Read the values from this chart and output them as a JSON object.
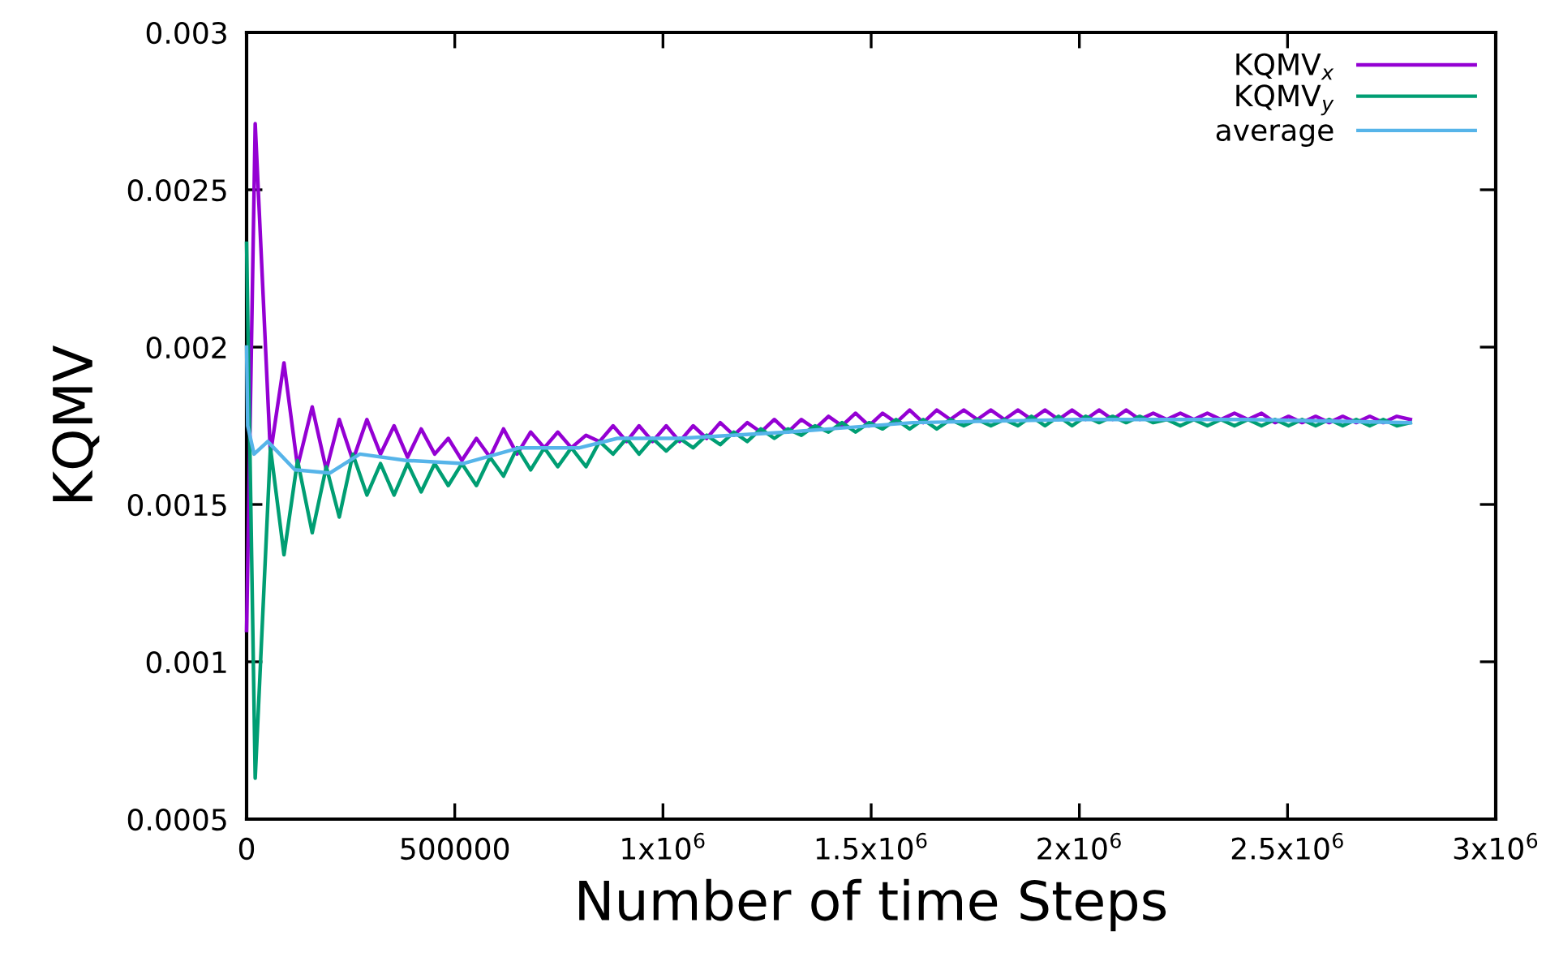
{
  "chart_data": {
    "type": "line",
    "xlabel": "Number of time Steps",
    "ylabel": "KQMV",
    "xlim": [
      0,
      3000000
    ],
    "ylim": [
      0.0005,
      0.003
    ],
    "xticks": [
      0,
      500000,
      {
        "value": 1000000,
        "label": "1x10$^{6}$"
      },
      {
        "value": 1500000,
        "label": "1.5x10$^{6}$"
      },
      {
        "value": 2000000,
        "label": "2x10$^{6}$"
      },
      {
        "value": 2500000,
        "label": "2.5x10$^{6}$"
      },
      {
        "value": 3000000,
        "label": "3x10$^{6}$"
      }
    ],
    "yticks": [
      0.0005,
      0.001,
      0.0015,
      0.002,
      0.0025,
      0.003
    ],
    "grid": false,
    "legend": "top right",
    "marker": "none",
    "line_style": "solid",
    "series": [
      {
        "name": "KQMV$_{x}$",
        "color": "#9400d3",
        "x": [
          0,
          20700,
          57300,
          89800,
          122400,
          157600,
          191400,
          222600,
          255200,
          289000,
          321600,
          354200,
          386700,
          419300,
          451800,
          484400,
          517000,
          552000,
          584600,
          617000,
          649700,
          682300,
          715000,
          747400,
          780000,
          815200,
          847700,
          880200,
          912800,
          942600,
          975000,
          1007800,
          1040000,
          1072500,
          1105000,
          1137500,
          1170000,
          1202500,
          1235000,
          1267500,
          1300000,
          1332500,
          1365000,
          1397500,
          1430000,
          1462500,
          1495000,
          1527500,
          1560000,
          1592500,
          1625000,
          1657500,
          1690000,
          1722500,
          1755000,
          1787500,
          1820000,
          1852500,
          1885000,
          1917500,
          1950000,
          1982500,
          2015000,
          2047500,
          2080000,
          2112500,
          2145000,
          2177500,
          2210000,
          2242500,
          2275000,
          2307500,
          2340000,
          2372500,
          2405000,
          2437500,
          2470000,
          2502500,
          2535000,
          2567500,
          2600000,
          2632500,
          2665000,
          2697500,
          2730000,
          2762500,
          2795000
        ],
        "values": [
          0.0011,
          0.00271,
          0.00166,
          0.00195,
          0.00162,
          0.00181,
          0.00161,
          0.00177,
          0.00164,
          0.00177,
          0.00166,
          0.00175,
          0.00165,
          0.00174,
          0.00166,
          0.00171,
          0.00164,
          0.00171,
          0.00165,
          0.00174,
          0.00166,
          0.00173,
          0.00168,
          0.00173,
          0.00168,
          0.00172,
          0.0017,
          0.00175,
          0.0017,
          0.00175,
          0.0017,
          0.00175,
          0.0017,
          0.00175,
          0.00171,
          0.00176,
          0.00172,
          0.00176,
          0.00173,
          0.00177,
          0.00173,
          0.00177,
          0.00174,
          0.00178,
          0.00175,
          0.00179,
          0.00175,
          0.00179,
          0.00176,
          0.0018,
          0.00176,
          0.0018,
          0.00177,
          0.0018,
          0.00177,
          0.0018,
          0.00177,
          0.0018,
          0.00177,
          0.0018,
          0.00177,
          0.0018,
          0.00177,
          0.0018,
          0.00177,
          0.0018,
          0.00177,
          0.00179,
          0.00177,
          0.00179,
          0.00177,
          0.00179,
          0.00177,
          0.00179,
          0.00177,
          0.00179,
          0.00176,
          0.00178,
          0.00176,
          0.00178,
          0.00176,
          0.00178,
          0.00176,
          0.00178,
          0.00176,
          0.00178,
          0.00177
        ]
      },
      {
        "name": "KQMV$_{y}$",
        "color": "#009e73",
        "x": [
          0,
          20700,
          57300,
          89800,
          122400,
          157600,
          191400,
          222600,
          255200,
          289000,
          321600,
          354200,
          386700,
          419300,
          451800,
          484400,
          517000,
          552000,
          584600,
          617000,
          649700,
          682300,
          715000,
          747400,
          780000,
          815200,
          847700,
          880200,
          912800,
          942600,
          975000,
          1007800,
          1040000,
          1072500,
          1105000,
          1137500,
          1170000,
          1202500,
          1235000,
          1267500,
          1300000,
          1332500,
          1365000,
          1397500,
          1430000,
          1462500,
          1495000,
          1527500,
          1560000,
          1592500,
          1625000,
          1657500,
          1690000,
          1722500,
          1755000,
          1787500,
          1820000,
          1852500,
          1885000,
          1917500,
          1950000,
          1982500,
          2015000,
          2047500,
          2080000,
          2112500,
          2145000,
          2177500,
          2210000,
          2242500,
          2275000,
          2307500,
          2340000,
          2372500,
          2405000,
          2437500,
          2470000,
          2502500,
          2535000,
          2567500,
          2600000,
          2632500,
          2665000,
          2697500,
          2730000,
          2762500,
          2795000
        ],
        "values": [
          0.00233,
          0.00063,
          0.00168,
          0.00134,
          0.00164,
          0.00141,
          0.00162,
          0.00146,
          0.00166,
          0.00153,
          0.00163,
          0.00153,
          0.00163,
          0.00154,
          0.00163,
          0.00156,
          0.00163,
          0.00156,
          0.00165,
          0.00159,
          0.00168,
          0.00161,
          0.00168,
          0.00162,
          0.00168,
          0.00162,
          0.0017,
          0.00166,
          0.00171,
          0.00166,
          0.00171,
          0.00167,
          0.00171,
          0.00168,
          0.00172,
          0.00169,
          0.00173,
          0.0017,
          0.00174,
          0.00171,
          0.00174,
          0.00172,
          0.00175,
          0.00173,
          0.00176,
          0.00173,
          0.00176,
          0.00174,
          0.00177,
          0.00174,
          0.00177,
          0.00174,
          0.00177,
          0.00175,
          0.00177,
          0.00175,
          0.00177,
          0.00175,
          0.00178,
          0.00175,
          0.00178,
          0.00175,
          0.00178,
          0.00176,
          0.00178,
          0.00176,
          0.00178,
          0.00176,
          0.00177,
          0.00175,
          0.00177,
          0.00175,
          0.00177,
          0.00175,
          0.00177,
          0.00175,
          0.00177,
          0.00175,
          0.00177,
          0.00175,
          0.00177,
          0.00175,
          0.00177,
          0.00175,
          0.00177,
          0.00175,
          0.00176
        ]
      },
      {
        "name": "average",
        "color": "#56b4e9",
        "x": [
          0,
          2700,
          18000,
          50800,
          116000,
          200500,
          272000,
          383000,
          519500,
          656000,
          799500,
          890600,
          1040000,
          1300000,
          1600000,
          2000000,
          2400000,
          2795000
        ],
        "values": [
          0.002,
          0.00175,
          0.00166,
          0.0017,
          0.00161,
          0.0016,
          0.00166,
          0.00164,
          0.00163,
          0.00168,
          0.00168,
          0.00171,
          0.00171,
          0.00173,
          0.00176,
          0.00177,
          0.00177,
          0.00176
        ]
      }
    ]
  }
}
